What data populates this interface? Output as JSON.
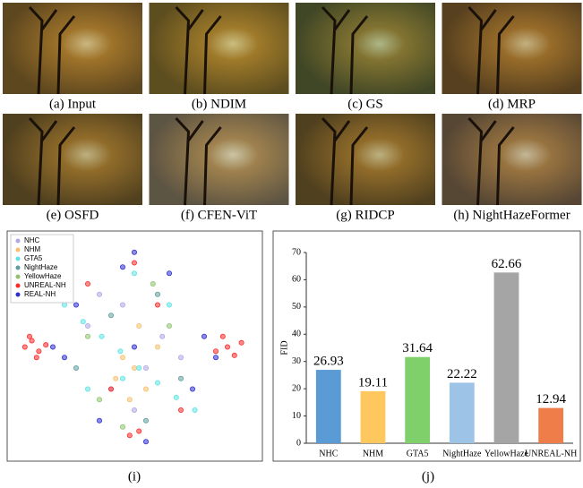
{
  "panels": [
    {
      "caption": "(a) Input"
    },
    {
      "caption": "(b) NDIM"
    },
    {
      "caption": "(c) GS"
    },
    {
      "caption": "(d) MRP"
    },
    {
      "caption": "(e) OSFD"
    },
    {
      "caption": "(f) CFEN-ViT"
    },
    {
      "caption": "(g) RIDCP"
    },
    {
      "caption": "(h) NightHazeFormer"
    }
  ],
  "chart_data": [
    {
      "type": "scatter",
      "caption": "(i)",
      "legend": "upper left",
      "series": [
        {
          "name": "NHC",
          "color": "#b4a6e6",
          "x": [
            30,
            45,
            55,
            62,
            40,
            70,
            35,
            50
          ],
          "values": [
            60,
            70,
            40,
            55,
            30,
            45,
            75,
            20
          ]
        },
        {
          "name": "NHM",
          "color": "#f7c06e",
          "x": [
            45,
            50,
            55,
            48,
            52,
            60,
            42
          ],
          "values": [
            45,
            40,
            30,
            25,
            60,
            50,
            35
          ]
        },
        {
          "name": "GTA5",
          "color": "#5fe3e3",
          "x": [
            20,
            28,
            36,
            44,
            52,
            60,
            68,
            76,
            30,
            45,
            65,
            50
          ],
          "values": [
            70,
            62,
            55,
            48,
            40,
            33,
            26,
            20,
            30,
            35,
            70,
            85
          ]
        },
        {
          "name": "NightHaze",
          "color": "#5f9e9e",
          "x": [
            25,
            60,
            70,
            40,
            55
          ],
          "values": [
            40,
            75,
            35,
            65,
            15
          ]
        },
        {
          "name": "YellowHaze",
          "color": "#8fc46e",
          "x": [
            35,
            58,
            65,
            45,
            30
          ],
          "values": [
            25,
            80,
            60,
            12,
            55
          ]
        },
        {
          "name": "UNREAL-NH",
          "color": "#ff2a2a",
          "x": [
            3,
            6,
            9,
            12,
            8,
            5,
            90,
            93,
            96,
            88,
            85,
            50,
            52,
            48,
            30,
            70,
            40,
            60
          ],
          "values": [
            50,
            53,
            48,
            51,
            45,
            55,
            50,
            46,
            52,
            55,
            48,
            90,
            10,
            8,
            80,
            20,
            30,
            70
          ]
        },
        {
          "name": "REAL-NH",
          "color": "#2f2fd0",
          "x": [
            15,
            20,
            80,
            85,
            50,
            45,
            55,
            35,
            65,
            25,
            75,
            50
          ],
          "values": [
            50,
            45,
            55,
            45,
            95,
            88,
            5,
            15,
            85,
            70,
            30,
            50
          ]
        }
      ]
    },
    {
      "type": "bar",
      "caption": "(j)",
      "ylabel": "FID",
      "categories": [
        "NHC",
        "NHM",
        "GTA5",
        "NightHaze",
        "YellowHaze",
        "UNREAL-NH"
      ],
      "values": [
        26.93,
        19.11,
        31.64,
        22.22,
        62.66,
        12.94
      ],
      "colors": [
        "#5b9bd5",
        "#ffc85f",
        "#7fcf6a",
        "#9dc3e6",
        "#a5a5a5",
        "#ee7d4a"
      ],
      "ylim": [
        0,
        70
      ],
      "yticks": [
        0,
        10,
        20,
        30,
        40,
        50,
        60,
        70
      ]
    }
  ]
}
